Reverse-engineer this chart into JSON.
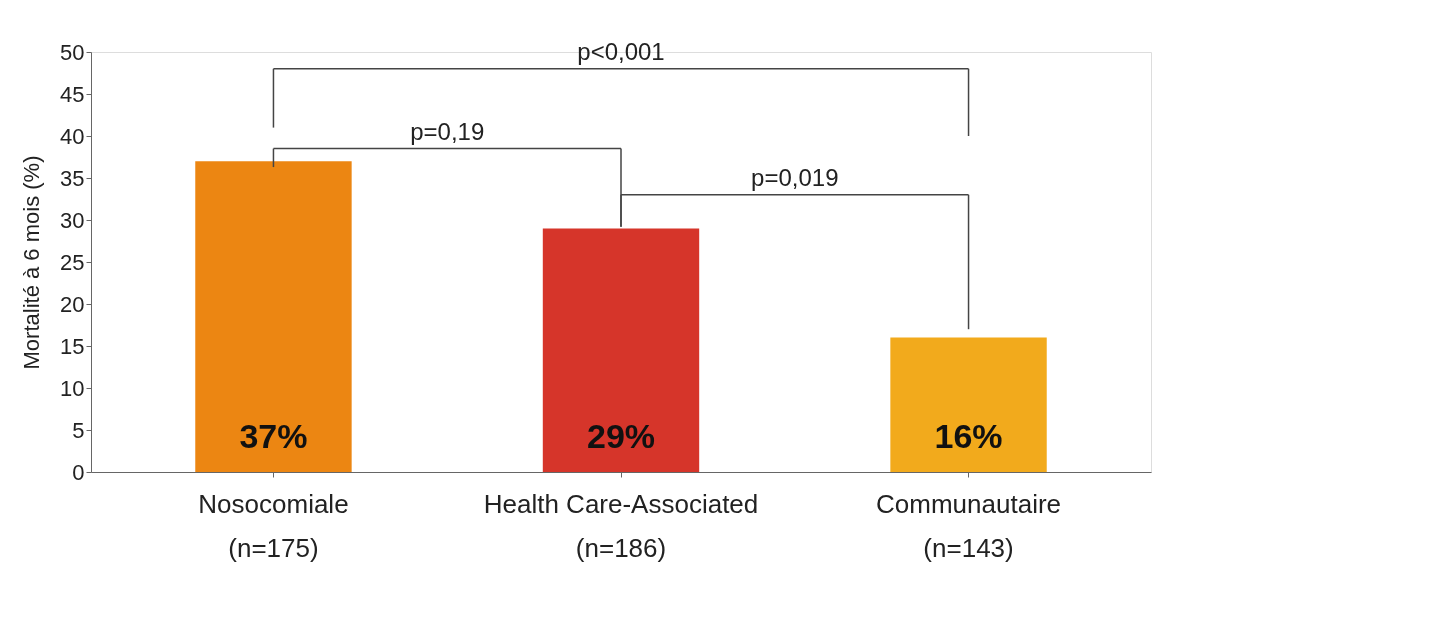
{
  "chart_data": {
    "type": "bar",
    "ylabel": "Mortalité à 6 mois (%)",
    "categories": [
      "Nosocomiale\n(n=175)",
      "Health Care-Associated\n(n=186)",
      "Communautaire\n(n=143)"
    ],
    "values": [
      37,
      29,
      16
    ],
    "value_labels": [
      "37%",
      "29%",
      "16%"
    ],
    "colors": [
      "#ec8612",
      "#d6352a",
      "#f2aa1c"
    ],
    "ylim": [
      0,
      50
    ],
    "yticks": [
      0,
      5,
      10,
      15,
      20,
      25,
      30,
      35,
      40,
      45,
      50
    ],
    "grid": false,
    "annotations": [
      "p<0,001",
      "p=0,19",
      "p=0,019"
    ]
  }
}
